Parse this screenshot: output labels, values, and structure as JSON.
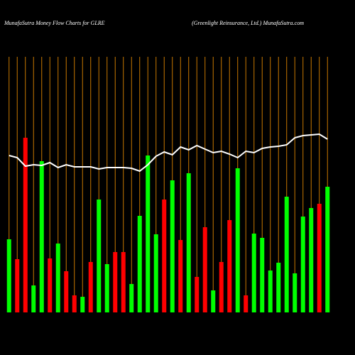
{
  "chart_data": {
    "type": "bar",
    "title": "MunafaSutra  Money Flow  Charts for GLRE",
    "subtitle": "(Greenlight Reinsurance, Ltd.) MunafaSutra.com",
    "categories": [
      null,
      null,
      null,
      null,
      null,
      null,
      null,
      null,
      null,
      null,
      null,
      null,
      null,
      null,
      null,
      null,
      null,
      null,
      null,
      null,
      null,
      null,
      null,
      null,
      null,
      null,
      null,
      null,
      null,
      null,
      null,
      null,
      null,
      null,
      null,
      null,
      null,
      null,
      null,
      null
    ],
    "ylim": [
      0,
      360
    ],
    "grid": true,
    "grid_color": "#c87800",
    "series": [
      {
        "values": [
          103,
          75,
          246,
          38,
          213,
          76,
          97,
          58,
          24,
          22,
          71,
          159,
          68,
          85,
          85,
          40,
          136,
          221,
          110,
          159,
          186,
          102,
          196,
          50,
          120,
          31,
          71,
          130,
          203,
          24,
          111,
          105,
          59,
          70,
          163,
          55,
          135,
          147,
          153,
          177
        ],
        "colors": [
          "#00ff00",
          "#ff0000",
          "#ff0000",
          "#00ff00",
          "#00ff00",
          "#ff0000",
          "#00ff00",
          "#ff0000",
          "#ff0000",
          "#00ff00",
          "#ff0000",
          "#00ff00",
          "#00ff00",
          "#ff0000",
          "#ff0000",
          "#00ff00",
          "#00ff00",
          "#00ff00",
          "#00ff00",
          "#ff0000",
          "#00ff00",
          "#ff0000",
          "#00ff00",
          "#ff0000",
          "#ff0000",
          "#00ff00",
          "#ff0000",
          "#ff0000",
          "#00ff00",
          "#ff0000",
          "#00ff00",
          "#00ff00",
          "#00ff00",
          "#00ff00",
          "#00ff00",
          "#00ff00",
          "#00ff00",
          "#00ff00",
          "#ff0000",
          "#00ff00"
        ]
      },
      {
        "type": "line",
        "color": "#ffffff",
        "values": [
          221,
          218,
          206,
          208,
          207,
          211,
          204,
          208,
          205,
          205,
          205,
          202,
          204,
          204,
          204,
          203,
          199,
          208,
          220,
          226,
          222,
          233,
          229,
          235,
          230,
          225,
          227,
          223,
          218,
          227,
          225,
          231,
          233,
          234,
          236,
          246,
          249,
          250,
          251,
          244
        ]
      }
    ]
  }
}
